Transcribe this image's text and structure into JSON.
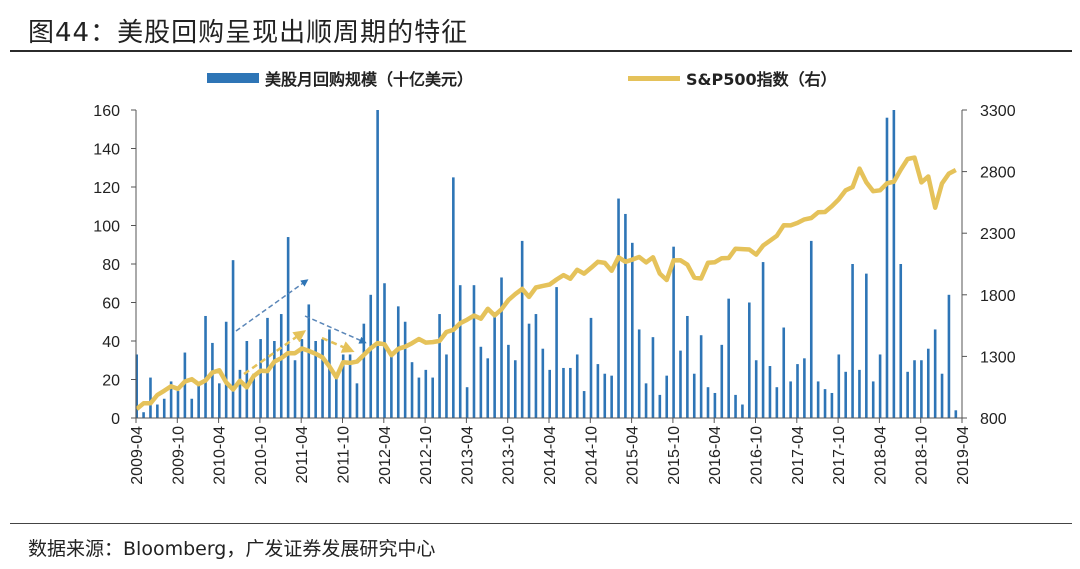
{
  "title": "图44：美股回购呈现出顺周期的特征",
  "source": "数据来源：Bloomberg，广发证券发展研究中心",
  "chart_data": {
    "type": "bar+line",
    "title": "图44：美股回购呈现出顺周期的特征",
    "legend_placement": "top",
    "colors": {
      "bar": "#2E75B6",
      "line": "#E5C25A",
      "arrow_blue": "#2E75B6",
      "arrow_yellow": "#E5C25A"
    },
    "start_month": "2009-04",
    "x_tick_labels": [
      "2009-04",
      "2009-10",
      "2010-04",
      "2010-10",
      "2011-04",
      "2011-10",
      "2012-04",
      "2012-10",
      "2013-04",
      "2013-10",
      "2014-04",
      "2014-10",
      "2015-04",
      "2015-10",
      "2016-04",
      "2016-10",
      "2017-04",
      "2017-10",
      "2018-04",
      "2018-10",
      "2019-04"
    ],
    "y_left": {
      "ticks": [
        0,
        20,
        40,
        60,
        80,
        100,
        120,
        140,
        160
      ],
      "range": [
        0,
        160
      ]
    },
    "y_right": {
      "ticks": [
        800,
        1300,
        1800,
        2300,
        2800,
        3300
      ],
      "range": [
        800,
        3300
      ]
    },
    "grid": false,
    "series": [
      {
        "name": "美股月回购规模（十亿美元）",
        "type": "bar",
        "axis": "left",
        "values": [
          33,
          3,
          21,
          7,
          10,
          19,
          14,
          34,
          10,
          18,
          53,
          39,
          18,
          50,
          82,
          25,
          40,
          23,
          41,
          52,
          40,
          54,
          94,
          30,
          41,
          59,
          40,
          41,
          46,
          22,
          33,
          33,
          18,
          49,
          64,
          160,
          70,
          32,
          58,
          50,
          29,
          21,
          25,
          21,
          54,
          33,
          125,
          69,
          16,
          69,
          37,
          31,
          55,
          73,
          38,
          30,
          92,
          49,
          54,
          36,
          25,
          68,
          26,
          26,
          33,
          14,
          52,
          28,
          23,
          22,
          114,
          106,
          91,
          46,
          18,
          42,
          12,
          22,
          89,
          35,
          53,
          23,
          43,
          16,
          13,
          38,
          62,
          12,
          7,
          60,
          30,
          81,
          27,
          16,
          47,
          19,
          28,
          31,
          92,
          19,
          15,
          13,
          33,
          24,
          80,
          25,
          75,
          19,
          33,
          156,
          160,
          80,
          24,
          30,
          30,
          36,
          46,
          23,
          64,
          4
        ]
      },
      {
        "name": "S&P500指数（右）",
        "type": "line",
        "axis": "right",
        "values": [
          873,
          919,
          919,
          987,
          1021,
          1057,
          1036,
          1096,
          1115,
          1074,
          1104,
          1169,
          1187,
          1089,
          1031,
          1102,
          1049,
          1141,
          1183,
          1181,
          1258,
          1286,
          1327,
          1326,
          1364,
          1345,
          1321,
          1292,
          1219,
          1131,
          1253,
          1247,
          1258,
          1312,
          1366,
          1408,
          1398,
          1310,
          1362,
          1379,
          1407,
          1441,
          1412,
          1416,
          1426,
          1498,
          1515,
          1569,
          1598,
          1631,
          1606,
          1686,
          1633,
          1682,
          1757,
          1806,
          1848,
          1783,
          1859,
          1872,
          1884,
          1924,
          1960,
          1931,
          2003,
          1972,
          2018,
          2068,
          2059,
          1995,
          2105,
          2068,
          2086,
          2107,
          2063,
          2104,
          1972,
          1920,
          2079,
          2080,
          2044,
          1940,
          1932,
          2060,
          2065,
          2097,
          2099,
          2174,
          2171,
          2168,
          2126,
          2199,
          2239,
          2279,
          2364,
          2363,
          2384,
          2412,
          2423,
          2470,
          2472,
          2519,
          2575,
          2648,
          2674,
          2824,
          2714,
          2641,
          2648,
          2705,
          2718,
          2816,
          2902,
          2914,
          2712,
          2760,
          2507,
          2704,
          2784,
          2813
        ]
      }
    ]
  }
}
